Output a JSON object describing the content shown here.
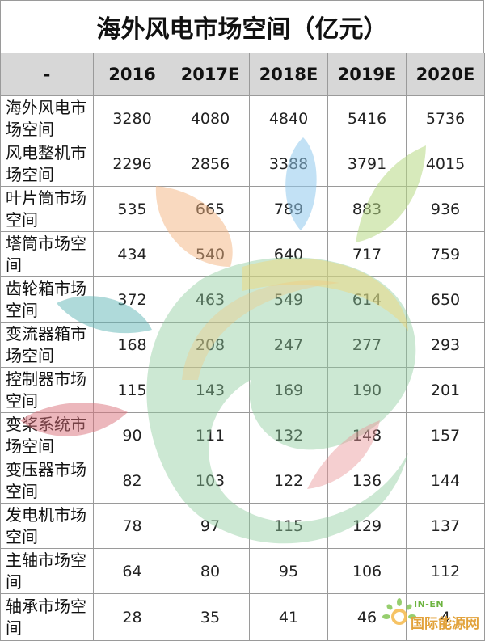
{
  "title": "海外风电市场空间（亿元）",
  "table": {
    "corner": "-",
    "years": [
      "2016",
      "2017E",
      "2018E",
      "2019E",
      "2020E"
    ],
    "rows": [
      {
        "label": "海外风电市场空间",
        "values": [
          "3280",
          "4080",
          "4840",
          "5416",
          "5736"
        ]
      },
      {
        "label": "风电整机市场空间",
        "values": [
          "2296",
          "2856",
          "3388",
          "3791",
          "4015"
        ]
      },
      {
        "label": "叶片筒市场空间",
        "values": [
          "535",
          "665",
          "789",
          "883",
          "936"
        ]
      },
      {
        "label": "塔筒市场空间",
        "values": [
          "434",
          "540",
          "640",
          "717",
          "759"
        ]
      },
      {
        "label": "齿轮箱市场空间",
        "values": [
          "372",
          "463",
          "549",
          "614",
          "650"
        ]
      },
      {
        "label": "变流器箱市场空间",
        "values": [
          "168",
          "208",
          "247",
          "277",
          "293"
        ]
      },
      {
        "label": "控制器市场空间",
        "values": [
          "115",
          "143",
          "169",
          "190",
          "201"
        ]
      },
      {
        "label": "变桨系统市场空间",
        "values": [
          "90",
          "111",
          "132",
          "148",
          "157"
        ]
      },
      {
        "label": "变压器市场空间",
        "values": [
          "82",
          "103",
          "122",
          "136",
          "144"
        ]
      },
      {
        "label": "发电机市场空间",
        "values": [
          "78",
          "97",
          "115",
          "129",
          "137"
        ]
      },
      {
        "label": "主轴市场空间",
        "values": [
          "64",
          "80",
          "95",
          "106",
          "112"
        ]
      },
      {
        "label": "轴承市场空间",
        "values": [
          "28",
          "35",
          "41",
          "46",
          "4"
        ]
      }
    ]
  },
  "watermark": {
    "logo_top": "IN-EN",
    "logo_text": "国际能源网"
  }
}
